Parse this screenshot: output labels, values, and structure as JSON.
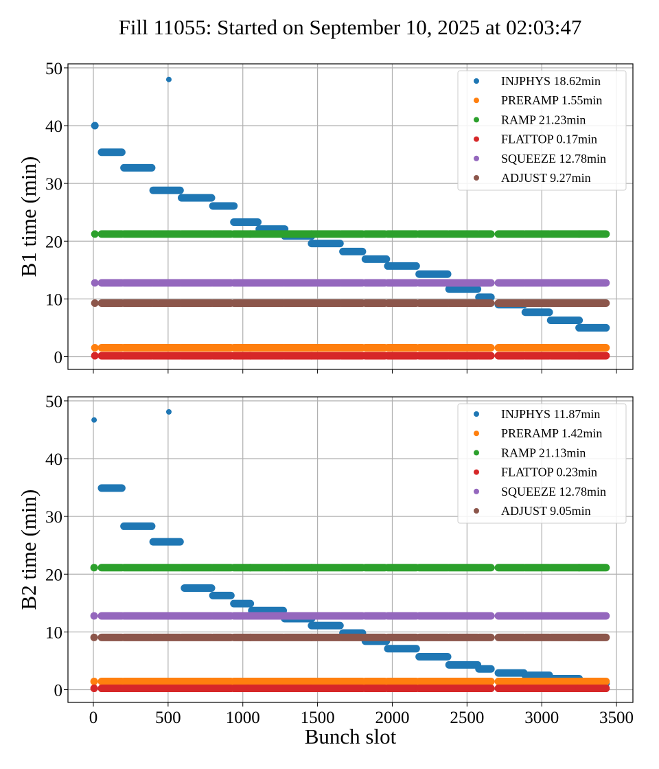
{
  "title": "Fill 11055: Started on September 10, 2025 at 02:03:47",
  "chart_data": [
    {
      "id": "b1",
      "type": "scatter",
      "title": "Fill 11055: Started on September 10, 2025 at 02:03:47",
      "xlabel": "",
      "ylabel": "B1 time (min)",
      "xlim": [
        -170,
        3610
      ],
      "ylim": [
        -2.2,
        50.7
      ],
      "xticks": [
        0,
        500,
        1000,
        1500,
        2000,
        2500,
        3000,
        3500
      ],
      "xtick_labels_visible": false,
      "yticks": [
        0,
        10,
        20,
        30,
        40,
        50
      ],
      "grid": true,
      "legend_position": "top-right",
      "train_runs": [
        [
          55,
          190
        ],
        [
          205,
          390
        ],
        [
          400,
          580
        ],
        [
          590,
          790
        ],
        [
          800,
          920
        ],
        [
          940,
          1050
        ],
        [
          1050,
          1270
        ],
        [
          1280,
          1460
        ],
        [
          1460,
          1650
        ],
        [
          1660,
          1800
        ],
        [
          1820,
          1950
        ],
        [
          1970,
          2160
        ],
        [
          2180,
          2370
        ],
        [
          2380,
          2570
        ],
        [
          2580,
          2660
        ],
        [
          2710,
          2880
        ],
        [
          2890,
          3050
        ],
        [
          3060,
          3250
        ],
        [
          3250,
          3430
        ]
      ],
      "series": [
        {
          "name": "INJPHYS",
          "label": "INJPHYS 18.62min",
          "color": "#1f77b4",
          "points": [
            [
              10,
              40.0
            ],
            [
              505,
              48.0
            ]
          ],
          "segments": [
            [
              55,
              190,
              35.4
            ],
            [
              205,
              390,
              32.7
            ],
            [
              400,
              580,
              28.8
            ],
            [
              590,
              790,
              27.5
            ],
            [
              800,
              940,
              26.1
            ],
            [
              940,
              1100,
              23.3
            ],
            [
              1110,
              1280,
              22.1
            ],
            [
              1280,
              1460,
              20.9
            ],
            [
              1460,
              1650,
              19.6
            ],
            [
              1670,
              1800,
              18.2
            ],
            [
              1820,
              1960,
              16.9
            ],
            [
              1970,
              2160,
              15.7
            ],
            [
              2180,
              2370,
              14.3
            ],
            [
              2380,
              2570,
              11.7
            ],
            [
              2580,
              2660,
              10.3
            ],
            [
              2710,
              2880,
              9.0
            ],
            [
              2890,
              3050,
              7.7
            ],
            [
              3060,
              3250,
              6.3
            ],
            [
              3250,
              3430,
              5.0
            ]
          ]
        },
        {
          "name": "PRERAMP",
          "label": "PRERAMP 1.55min",
          "color": "#ff7f0e",
          "level": 1.55,
          "points": [
            [
              10,
              1.55
            ]
          ]
        },
        {
          "name": "RAMP",
          "label": "RAMP 21.23min",
          "color": "#2ca02c",
          "level": 21.23,
          "points": [
            [
              10,
              21.23
            ]
          ]
        },
        {
          "name": "FLATTOP",
          "label": "FLATTOP 0.17min",
          "color": "#d62728",
          "level": 0.17,
          "points": [
            [
              10,
              0.17
            ]
          ]
        },
        {
          "name": "SQUEEZE",
          "label": "SQUEEZE 12.78min",
          "color": "#9467bd",
          "level": 12.78,
          "points": [
            [
              10,
              12.78
            ]
          ]
        },
        {
          "name": "ADJUST",
          "label": "ADJUST 9.27min",
          "color": "#8c564b",
          "level": 9.27,
          "points": [
            [
              10,
              9.27
            ]
          ]
        }
      ]
    },
    {
      "id": "b2",
      "type": "scatter",
      "xlabel": "Bunch slot",
      "ylabel": "B2 time (min)",
      "xlim": [
        -170,
        3610
      ],
      "ylim": [
        -2.2,
        50.7
      ],
      "xticks": [
        0,
        500,
        1000,
        1500,
        2000,
        2500,
        3000,
        3500
      ],
      "xtick_labels_visible": true,
      "yticks": [
        0,
        10,
        20,
        30,
        40,
        50
      ],
      "grid": true,
      "legend_position": "top-right",
      "train_runs": [
        [
          55,
          190
        ],
        [
          205,
          390
        ],
        [
          400,
          580
        ],
        [
          590,
          790
        ],
        [
          800,
          920
        ],
        [
          940,
          1050
        ],
        [
          1050,
          1270
        ],
        [
          1280,
          1460
        ],
        [
          1460,
          1650
        ],
        [
          1660,
          1800
        ],
        [
          1820,
          1950
        ],
        [
          1970,
          2160
        ],
        [
          2180,
          2370
        ],
        [
          2380,
          2570
        ],
        [
          2580,
          2660
        ],
        [
          2710,
          2880
        ],
        [
          2890,
          3050
        ],
        [
          3060,
          3250
        ],
        [
          3250,
          3430
        ]
      ],
      "series": [
        {
          "name": "INJPHYS",
          "label": "INJPHYS 11.87min",
          "color": "#1f77b4",
          "points": [
            [
              5,
              46.7
            ],
            [
              505,
              48.1
            ]
          ],
          "segments": [
            [
              55,
              190,
              34.9
            ],
            [
              205,
              390,
              28.3
            ],
            [
              400,
              580,
              25.6
            ],
            [
              610,
              790,
              17.6
            ],
            [
              800,
              920,
              16.3
            ],
            [
              940,
              1050,
              14.9
            ],
            [
              1060,
              1270,
              13.7
            ],
            [
              1280,
              1460,
              12.3
            ],
            [
              1460,
              1650,
              11.1
            ],
            [
              1670,
              1800,
              9.8
            ],
            [
              1820,
              1960,
              8.4
            ],
            [
              1970,
              2160,
              7.1
            ],
            [
              2180,
              2370,
              5.7
            ],
            [
              2380,
              2570,
              4.3
            ],
            [
              2580,
              2660,
              3.6
            ],
            [
              2710,
              2880,
              2.9
            ],
            [
              2890,
              3050,
              2.5
            ],
            [
              3060,
              3250,
              1.9
            ],
            [
              3250,
              3430,
              1.1
            ]
          ]
        },
        {
          "name": "PRERAMP",
          "label": "PRERAMP 1.42min",
          "color": "#ff7f0e",
          "level": 1.42,
          "points": [
            [
              5,
              1.42
            ]
          ]
        },
        {
          "name": "RAMP",
          "label": "RAMP 21.13min",
          "color": "#2ca02c",
          "level": 21.13,
          "points": [
            [
              5,
              21.13
            ]
          ]
        },
        {
          "name": "FLATTOP",
          "label": "FLATTOP 0.23min",
          "color": "#d62728",
          "level": 0.23,
          "points": [
            [
              5,
              0.23
            ]
          ]
        },
        {
          "name": "SQUEEZE",
          "label": "SQUEEZE 12.78min",
          "color": "#9467bd",
          "level": 12.78,
          "points": [
            [
              5,
              12.78
            ]
          ]
        },
        {
          "name": "ADJUST",
          "label": "ADJUST 9.05min",
          "color": "#8c564b",
          "level": 9.05,
          "points": [
            [
              5,
              9.05
            ]
          ]
        }
      ]
    }
  ]
}
